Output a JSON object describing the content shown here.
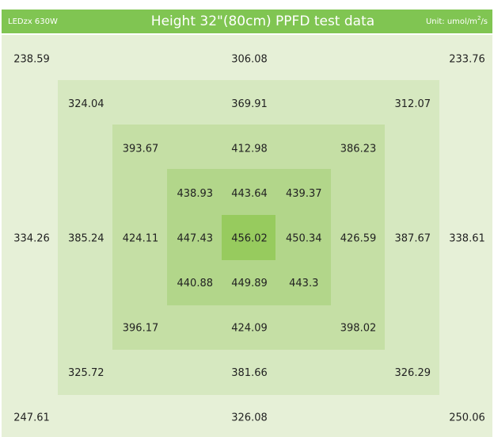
{
  "header": {
    "brand": "LEDzx 630W",
    "title": "Height 32\"(80cm) PPFD test data",
    "unit": {
      "prefix": "Unit: umol/m",
      "sup": "2",
      "suffix": "/s"
    }
  },
  "grid": {
    "rows": [
      [
        238.59,
        null,
        null,
        null,
        306.08,
        null,
        null,
        null,
        233.76
      ],
      [
        null,
        324.04,
        null,
        null,
        369.91,
        null,
        null,
        312.07,
        null
      ],
      [
        null,
        null,
        393.67,
        null,
        412.98,
        null,
        386.23,
        null,
        null
      ],
      [
        null,
        null,
        null,
        438.93,
        443.64,
        439.37,
        null,
        null,
        null
      ],
      [
        334.26,
        385.24,
        424.11,
        447.43,
        456.02,
        450.34,
        426.59,
        387.67,
        338.61
      ],
      [
        null,
        null,
        null,
        440.88,
        449.89,
        443.3,
        null,
        null,
        null
      ],
      [
        null,
        null,
        396.17,
        null,
        424.09,
        null,
        398.02,
        null,
        null
      ],
      [
        null,
        325.72,
        null,
        null,
        381.66,
        null,
        null,
        326.29,
        null
      ],
      [
        247.61,
        null,
        null,
        null,
        326.08,
        null,
        null,
        null,
        250.06
      ]
    ]
  }
}
